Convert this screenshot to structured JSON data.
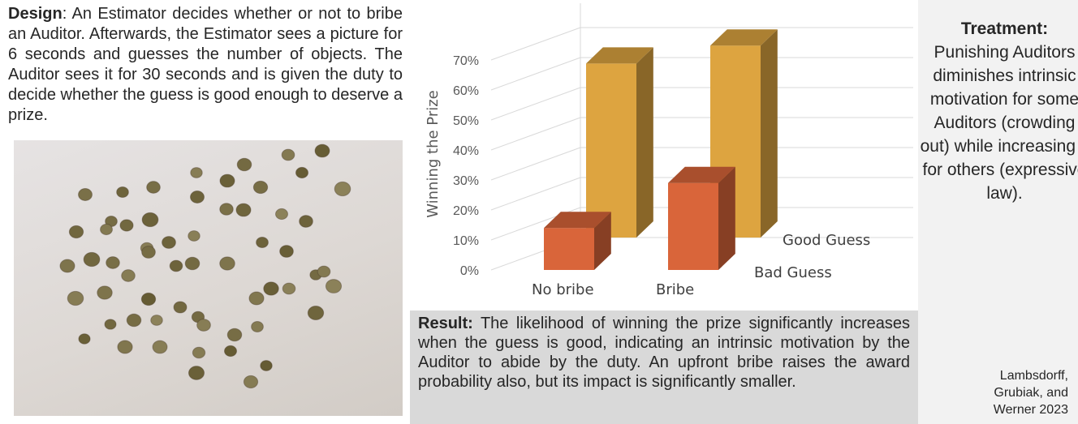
{
  "design": {
    "label": "Design",
    "text": ": An Estimator decides whether or not to bribe an Auditor. Afterwards, the Estimator sees a picture for 6 seconds and guesses the number of objects. The Auditor sees it for 30 seconds and is given the duty to decide whether the guess is good enough to deserve a prize."
  },
  "chart_data": {
    "type": "bar",
    "style": "3d",
    "categories": [
      "No bribe",
      "Bribe"
    ],
    "series": [
      {
        "name": "Bad Guess",
        "values": [
          14,
          29
        ],
        "color": "#d9653a"
      },
      {
        "name": "Good Guess",
        "values": [
          58,
          64
        ],
        "color": "#dda440"
      }
    ],
    "ylabel": "Winning the Prize",
    "yticks": [
      "0%",
      "10%",
      "20%",
      "30%",
      "40%",
      "50%",
      "60%",
      "70%"
    ],
    "ylim": [
      0,
      70
    ]
  },
  "result": {
    "label": "Result:",
    "text": " The likelihood of winning the prize significantly increases when the guess is good, indicating an intrinsic motivation by the Auditor to abide by the duty. An upfront bribe raises the award probability also, but its impact is significantly smaller."
  },
  "treatment": {
    "label": "Treatment:",
    "text": "Punishing Auditors diminishes intrinsic motivation for some Auditors (crowding out) while increasing it for others (expressive law)."
  },
  "citation": "Lambsdorff, Grubiak, and Werner 2023",
  "photo": {
    "icon": "lentil-seeds-photo"
  }
}
